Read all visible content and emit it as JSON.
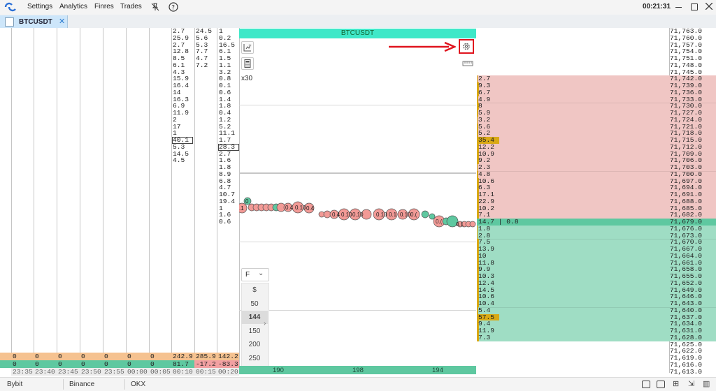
{
  "menu": {
    "items": [
      "Settings",
      "Analytics",
      "Finres",
      "Trades"
    ],
    "clock": "00:21:31"
  },
  "tab": {
    "label": "BTCUSDT"
  },
  "chart": {
    "symbol": "BTCUSDT",
    "multiplier": "x30",
    "timeframe_selected": "F",
    "timeframes": [
      "$",
      "50",
      "144",
      "150",
      "200",
      "250"
    ],
    "active_timeframe": "144",
    "x_ticks": [
      "190",
      "198",
      "194"
    ],
    "bubble_labels": [
      ".1",
      "0",
      "0.4",
      "0.10",
      "0.4",
      "0.4",
      "0.10",
      "0.10",
      "0.10",
      "0.1",
      "0.10",
      "0.(",
      "0.(",
      "0.1"
    ]
  },
  "time_columns": {
    "times": [
      "23:35",
      "23:40",
      "23:45",
      "23:50",
      "23:55",
      "00:00",
      "00:05",
      "00:10",
      "00:15",
      "00:20"
    ],
    "row1": [
      "0",
      "0",
      "0",
      "0",
      "0",
      "0",
      "0",
      "242.9",
      "285.9",
      "142.2"
    ],
    "row2": [
      "0",
      "0",
      "0",
      "0",
      "0",
      "0",
      "0",
      "81.7",
      "-17.2",
      "-83.3"
    ]
  },
  "volume_columns": {
    "col_a": [
      "2.7",
      "25.9",
      "2.7",
      "12.8",
      "8.5",
      "6.1",
      "4.3",
      "15.9",
      "16.4",
      "14",
      "16.3",
      "6.9",
      "11.9",
      "2",
      "17",
      "1",
      "40.1",
      "5.3",
      "14.5",
      "4.5"
    ],
    "col_a_boxed_index": 16,
    "col_b": [
      "24.5",
      "5.6",
      "5.3",
      "7.7",
      "4.7",
      "7.2"
    ],
    "col_c": [
      "1",
      "0.2",
      "16.5",
      "6.1",
      "1.5",
      "1.1",
      "3.2",
      "0.8",
      "0.1",
      "0.6",
      "1.4",
      "1.8",
      "0.4",
      "1.2",
      "5.2",
      "11.1",
      "1.7",
      "28.3",
      "2.7",
      "1.6",
      "1.8",
      "8.9",
      "6.8",
      "4.7",
      "10.7",
      "19.4",
      "1",
      "1.6",
      "0.6"
    ],
    "col_c_boxed_index": 17
  },
  "ladder": {
    "prices": [
      "71,763.0",
      "71,760.0",
      "71,757.0",
      "71,754.0",
      "71,751.0",
      "71,748.0",
      "71,745.0",
      "71,742.0",
      "71,739.0",
      "71,736.0",
      "71,733.0",
      "71,730.0",
      "71,727.0",
      "71,724.0",
      "71,721.0",
      "71,718.0",
      "71,715.0",
      "71,712.0",
      "71,709.0",
      "71,706.0",
      "71,703.0",
      "71,700.0",
      "71,697.0",
      "71,694.0",
      "71,691.0",
      "71,688.0",
      "71,685.0",
      "71,682.0",
      "71,679.0",
      "71,676.0",
      "71,673.0",
      "71,670.0",
      "71,667.0",
      "71,664.0",
      "71,661.0",
      "71,658.0",
      "71,655.0",
      "71,652.0",
      "71,649.0",
      "71,646.0",
      "71,643.0",
      "71,640.0",
      "71,637.0",
      "71,634.0",
      "71,631.0",
      "71,628.0",
      "71,625.0",
      "71,622.0",
      "71,619.0",
      "71,616.0",
      "71,613.0"
    ],
    "values": [
      "",
      "",
      "",
      "",
      "",
      "",
      "",
      "2.7",
      "9.3",
      "6.7",
      "4.9",
      "8",
      "5.9",
      "3.2",
      "5.6",
      "5.2",
      "35.4",
      "12.2",
      "10.9",
      "9.2",
      "2.3",
      "4.8",
      "10.6",
      "6.3",
      "17.1",
      "22.9",
      "10.2",
      "7.1",
      "14.7 | 0.8",
      "1.8",
      "2.8",
      "7.5",
      "13.9",
      "10",
      "11.8",
      "9.9",
      "10.3",
      "12.4",
      "14.5",
      "10.6",
      "10.4",
      "5.4",
      "57.5",
      "9.4",
      "11.9",
      "7.3",
      "",
      "",
      "",
      "",
      ""
    ],
    "ask_start": 7,
    "ask_end": 27,
    "current_index": 28,
    "bid_start": 29,
    "bid_end": 45,
    "highlight_indices": [
      16,
      42
    ],
    "colors": {
      "ask": "#f0c6c4",
      "bid": "#9fddc4",
      "current": "#5ec8a0",
      "highlight": "#d9a915"
    }
  },
  "footer": {
    "tabs": [
      "Bybit",
      "Binance",
      "OKX"
    ]
  }
}
